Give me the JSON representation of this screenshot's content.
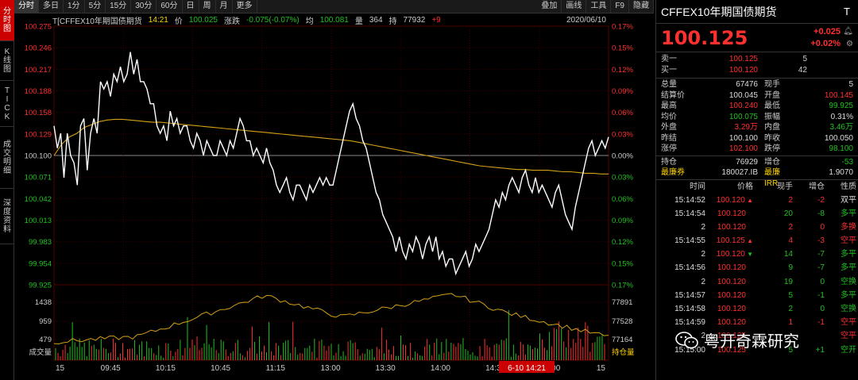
{
  "left_tabs": [
    {
      "label": "分时图",
      "active": true
    },
    {
      "label": "K线图",
      "active": false
    },
    {
      "label": "TICK",
      "active": false
    },
    {
      "label": "成交明细",
      "active": false
    },
    {
      "label": "深度资料",
      "active": false
    }
  ],
  "toolbar": {
    "periods": [
      "分时",
      "多日",
      "1分",
      "5分",
      "15分",
      "30分",
      "60分",
      "日",
      "周",
      "月",
      "更多"
    ],
    "active_period": "分时",
    "right_buttons": [
      "叠加",
      "画线",
      "工具",
      "F9",
      "隐藏"
    ]
  },
  "info_line": {
    "symbol": "T[CFFEX10年期国债期货",
    "time": "14:21",
    "price_label": "价",
    "price": "100.025",
    "change_label": "涨跌",
    "change": "-0.075(-0.07%)",
    "avg_label": "均",
    "avg": "100.081",
    "volume_label": "量",
    "volume": "364",
    "oi_label": "持",
    "oi": "77932",
    "oi_change": "+9",
    "date": "2020/06/10"
  },
  "chart_data": {
    "type": "line",
    "price_axis": [
      "100.275",
      "100.246",
      "100.217",
      "100.188",
      "100.158",
      "100.129",
      "100.100",
      "100.071",
      "100.042",
      "100.013",
      "99.983",
      "99.954",
      "99.925"
    ],
    "pct_axis": [
      "0.17%",
      "0.15%",
      "0.12%",
      "0.09%",
      "0.06%",
      "0.03%",
      "0.00%",
      "0.03%",
      "0.06%",
      "0.09%",
      "0.12%",
      "0.15%",
      "0.17%"
    ],
    "ylim": [
      99.925,
      100.275
    ],
    "prev_settle": 100.1,
    "vol_axis": [
      "1438",
      "959",
      "479",
      "成交量"
    ],
    "oi_axis": [
      "77891",
      "77528",
      "77164",
      "持仓量"
    ],
    "time_ticks": [
      "15",
      "09:45",
      "10:15",
      "10:45",
      "11:15",
      "13:00",
      "13:30",
      "14:00",
      "14:30",
      "15:00",
      "15"
    ],
    "crosshair_label": "6-10 14:21",
    "series": [
      {
        "values": [
          100.14,
          100.11,
          100.13,
          100.07,
          100.13,
          100.1,
          100.09,
          100.06,
          100.14,
          100.15,
          100.08,
          100.13,
          100.15,
          100.13,
          100.2,
          100.19,
          100.2,
          100.18,
          100.21,
          100.2,
          100.22,
          100.2,
          100.21,
          100.24,
          100.21,
          100.23,
          100.2,
          100.2,
          100.19,
          100.17,
          100.17,
          100.14,
          100.13,
          100.14,
          100.12,
          100.16,
          100.14,
          100.15,
          100.13,
          100.14,
          100.14,
          100.12,
          100.11,
          100.13,
          100.12,
          100.1,
          100.12,
          100.11,
          100.1,
          100.1,
          100.12,
          100.11,
          100.1,
          100.12,
          100.11,
          100.13,
          100.15,
          100.14,
          100.12,
          100.12,
          100.1,
          100.11,
          100.1,
          100.09,
          100.11,
          100.09,
          100.08,
          100.06,
          100.05,
          100.06,
          100.07,
          100.05,
          100.04,
          100.06,
          100.06,
          100.05,
          100.04,
          100.06,
          100.05,
          100.06,
          100.07,
          100.06,
          100.07,
          100.06,
          100.06,
          100.08,
          100.1,
          100.12,
          100.14,
          100.16,
          100.17,
          100.15,
          100.14,
          100.12,
          100.11,
          100.09,
          100.07,
          100.05,
          100.04,
          100.02,
          100.01,
          100.0,
          99.99,
          99.97,
          99.99,
          99.97,
          99.96,
          99.98,
          99.97,
          99.99,
          99.98,
          99.96,
          99.98,
          99.99,
          99.97,
          99.99,
          99.96,
          99.97,
          99.95,
          99.96,
          99.96,
          99.94,
          99.95,
          99.96,
          99.97,
          99.95,
          99.96,
          99.98,
          99.97,
          99.98,
          99.99,
          100.0,
          100.02,
          100.04,
          100.03,
          100.05,
          100.04,
          100.06,
          100.07,
          100.06,
          100.05,
          100.07,
          100.08,
          100.06,
          100.05,
          100.07,
          100.05,
          100.06,
          100.05,
          100.04,
          100.03,
          100.05,
          100.06,
          100.04,
          100.02,
          100.01,
          100.0,
          100.03,
          100.05,
          100.07,
          100.09,
          100.11,
          100.12,
          100.1,
          100.11,
          100.12,
          100.11,
          100.125
        ]
      },
      {
        "values": [
          100.1,
          100.115,
          100.125,
          100.13,
          100.138,
          100.142,
          100.146,
          100.148,
          100.149,
          100.149,
          100.148,
          100.147,
          100.146,
          100.145,
          100.145,
          100.144,
          100.143,
          100.142,
          100.141,
          100.14,
          100.139,
          100.138,
          100.137,
          100.136,
          100.135,
          100.134,
          100.133,
          100.132,
          100.131,
          100.13,
          100.129,
          100.128,
          100.127,
          100.126,
          100.125,
          100.124,
          100.123,
          100.122,
          100.121,
          100.12,
          100.118,
          100.116,
          100.114,
          100.112,
          100.11,
          100.108,
          100.106,
          100.104,
          100.102,
          100.1,
          100.098,
          100.096,
          100.094,
          100.092,
          100.09,
          100.088,
          100.086,
          100.085,
          100.084,
          100.083,
          100.082,
          100.081,
          100.081,
          100.08,
          100.08,
          100.08,
          100.079,
          100.078,
          100.078,
          100.077,
          100.076,
          100.076,
          100.075,
          100.075
        ]
      }
    ],
    "volume_bars_max": 1438,
    "oi_range": [
      77164,
      77891
    ]
  },
  "quote_panel": {
    "title": "CFFEX10年期国债期货",
    "title_flag": "T",
    "last_price": "100.125",
    "change": "+0.025",
    "change_pct": "+0.02%",
    "order_book": [
      {
        "label": "卖一",
        "price": "100.125",
        "volume": "5"
      },
      {
        "label": "买一",
        "price": "100.120",
        "volume": "42"
      }
    ],
    "stats": [
      {
        "l1": "总量",
        "v1": "67476",
        "c1": "white",
        "l2": "现手",
        "v2": "5",
        "c2": "white"
      },
      {
        "l1": "结算价",
        "v1": "100.045",
        "c1": "white",
        "l2": "开盘",
        "v2": "100.145",
        "c2": "red"
      },
      {
        "l1": "最高",
        "v1": "100.240",
        "c1": "red",
        "l2": "最低",
        "v2": "99.925",
        "c2": "green"
      },
      {
        "l1": "均价",
        "v1": "100.075",
        "c1": "green",
        "l2": "振幅",
        "v2": "0.31%",
        "c2": "white"
      },
      {
        "l1": "外盘",
        "v1": "3.29万",
        "c1": "red",
        "l2": "内盘",
        "v2": "3.46万",
        "c2": "green"
      },
      {
        "l1": "昨结",
        "v1": "100.100",
        "c1": "white",
        "l2": "昨收",
        "v2": "100.050",
        "c2": "white"
      },
      {
        "l1": "涨停",
        "v1": "102.100",
        "c1": "red",
        "l2": "跌停",
        "v2": "98.100",
        "c2": "green"
      }
    ],
    "stats2": [
      {
        "l1": "持仓",
        "v1": "76929",
        "c1": "white",
        "l2": "增仓",
        "v2": "-53",
        "c2": "green"
      },
      {
        "l1": "最廉券",
        "v1": "180027.IB",
        "c1": "white",
        "l2": "最廉IRR",
        "v2": "1.9070",
        "c2": "white"
      }
    ],
    "trade_headers": [
      "时间",
      "价格",
      "现手",
      "增仓",
      "性质"
    ],
    "trades": [
      {
        "time": "15:14:52",
        "price": "100.120",
        "dir": "up",
        "vol": "2",
        "oi": "-2",
        "nature": "双平",
        "pc": "red",
        "vc": "red",
        "nc": "white"
      },
      {
        "time": "15:14:54",
        "price": "100.120",
        "dir": "",
        "vol": "20",
        "oi": "-8",
        "nature": "多平",
        "pc": "red",
        "vc": "green",
        "nc": "green"
      },
      {
        "time": "2",
        "price": "100.120",
        "dir": "",
        "vol": "2",
        "oi": "0",
        "nature": "多换",
        "pc": "red",
        "vc": "red",
        "nc": "red"
      },
      {
        "time": "15:14:55",
        "price": "100.125",
        "dir": "up",
        "vol": "4",
        "oi": "-3",
        "nature": "空平",
        "pc": "red",
        "vc": "red",
        "nc": "red"
      },
      {
        "time": "2",
        "price": "100.120",
        "dir": "down",
        "vol": "14",
        "oi": "-7",
        "nature": "多平",
        "pc": "red",
        "vc": "green",
        "nc": "green"
      },
      {
        "time": "15:14:56",
        "price": "100.120",
        "dir": "",
        "vol": "9",
        "oi": "-7",
        "nature": "多平",
        "pc": "red",
        "vc": "green",
        "nc": "green"
      },
      {
        "time": "2",
        "price": "100.120",
        "dir": "",
        "vol": "19",
        "oi": "0",
        "nature": "空换",
        "pc": "red",
        "vc": "green",
        "nc": "green"
      },
      {
        "time": "15:14:57",
        "price": "100.120",
        "dir": "",
        "vol": "5",
        "oi": "-1",
        "nature": "多平",
        "pc": "red",
        "vc": "green",
        "nc": "green"
      },
      {
        "time": "15:14:58",
        "price": "100.120",
        "dir": "",
        "vol": "2",
        "oi": "0",
        "nature": "空换",
        "pc": "red",
        "vc": "green",
        "nc": "green"
      },
      {
        "time": "15:14:59",
        "price": "100.120",
        "dir": "",
        "vol": "1",
        "oi": "-1",
        "nature": "空平",
        "pc": "red",
        "vc": "red",
        "nc": "red"
      },
      {
        "time": "2",
        "price": "100.125",
        "dir": "",
        "vol": "",
        "oi": "",
        "nature": "空平",
        "pc": "red",
        "vc": "red",
        "nc": "red"
      },
      {
        "time": "15:15:00",
        "price": "100.125",
        "dir": "",
        "vol": "5",
        "oi": "+1",
        "nature": "空开",
        "pc": "red",
        "vc": "green",
        "nc": "green"
      }
    ]
  },
  "watermark": {
    "text": "粤开奇霖研究"
  },
  "colors": {
    "up": "#ff3030",
    "down": "#20c020",
    "price_line": "#ffffff",
    "avg_line": "#d4a017",
    "oi_line": "#d4a017",
    "background": "#000000"
  }
}
